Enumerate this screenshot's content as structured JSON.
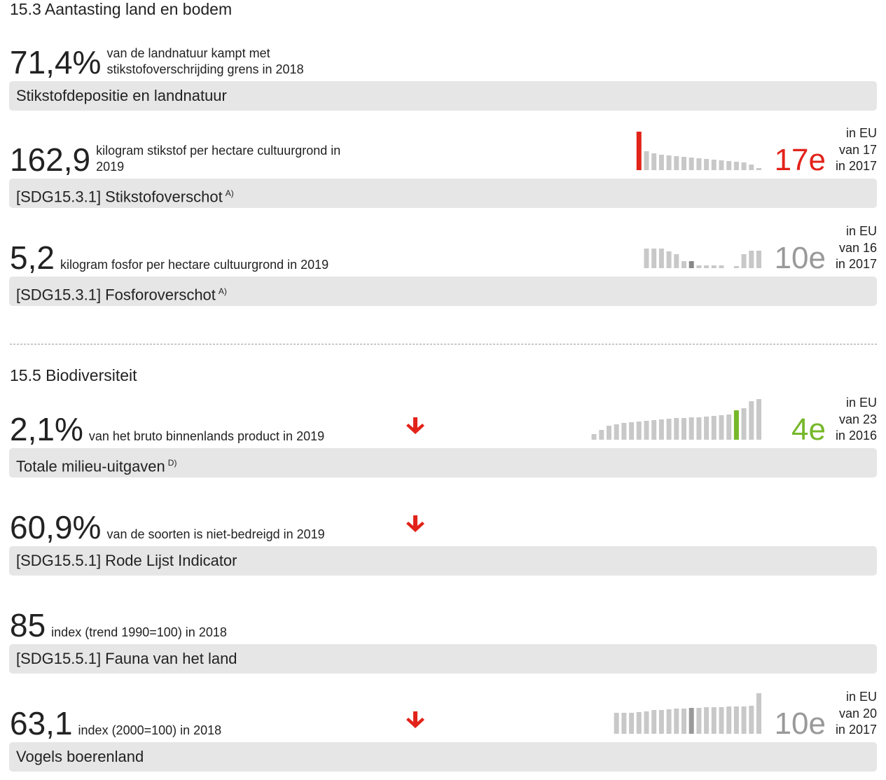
{
  "sections": [
    {
      "title": "15.3 Aantasting land en bodem",
      "indicators": [
        {
          "value": "71,4%",
          "description": [
            "van de landnatuur kampt met",
            "stikstofoverschrijding grens in 2018"
          ],
          "label": "Stikstofdepositie en landnatuur"
        },
        {
          "value": "162,9",
          "description": [
            "kilogram stikstof per hectare cultuurgrond in",
            "2019"
          ],
          "label": "[SDG15.3.1] Stikstofoverschot",
          "note": "A)",
          "rank": {
            "region": "in EU",
            "of": "van 17",
            "year": "in 2017",
            "position": "17e",
            "color": "#e2231a"
          },
          "bars": {
            "values": [
              55,
              27,
              24,
              22,
              21,
              20,
              19,
              18,
              17,
              16,
              15,
              14,
              13,
              12,
              11,
              8,
              3
            ],
            "color": "#c8c8c8",
            "highlight": 0,
            "highlight_color": "#e2231a"
          }
        },
        {
          "value": "5,2",
          "description": [
            "kilogram fosfor per hectare cultuurgrond in 2019"
          ],
          "label": "[SDG15.3.1] Fosforoverschot",
          "note": "A)",
          "rank": {
            "region": "in EU",
            "of": "van 16",
            "year": "in 2017",
            "position": "10e",
            "color": "#999999"
          },
          "bars": {
            "values": [
              28,
              28,
              28,
              24,
              20,
              10,
              10,
              4,
              4,
              4,
              4,
              null,
              3,
              20,
              25,
              25
            ],
            "color": "#c8c8c8",
            "highlight": 6,
            "highlight_color": "#888888"
          }
        }
      ]
    },
    {
      "title": "15.5 Biodiversiteit",
      "indicators": [
        {
          "value": "2,1%",
          "description": [
            "van het bruto binnenlands product in 2019"
          ],
          "label": "Totale milieu-uitgaven",
          "note": "D)",
          "trend": "down",
          "rank": {
            "region": "in EU",
            "of": "van 23",
            "year": "in 2016",
            "position": "4e",
            "color": "#76b82a"
          },
          "bars": {
            "values": [
              8,
              14,
              20,
              22,
              24,
              25,
              26,
              27,
              28,
              29,
              30,
              31,
              31,
              32,
              32,
              33,
              34,
              35,
              36,
              42,
              45,
              55,
              58
            ],
            "color": "#c8c8c8",
            "highlight": 19,
            "highlight_color": "#76b82a"
          }
        },
        {
          "value": "60,9%",
          "description": [
            "van de soorten is niet-bedreigd in 2019"
          ],
          "label": "[SDG15.5.1] Rode Lijst Indicator",
          "trend": "down"
        },
        {
          "value": "85",
          "description": [
            "index (trend 1990=100) in 2018"
          ],
          "label": "[SDG15.5.1] Fauna van het land"
        },
        {
          "value": "63,1",
          "description": [
            "index (2000=100) in 2018"
          ],
          "label": "Vogels boerenland",
          "trend": "down",
          "rank": {
            "region": "in EU",
            "of": "van 20",
            "year": "in 2017",
            "position": "10e",
            "color": "#999999"
          },
          "bars": {
            "values": [
              30,
              30,
              30,
              31,
              32,
              34,
              34,
              35,
              36,
              36,
              37,
              37,
              38,
              38,
              38,
              39,
              39,
              39,
              40,
              58
            ],
            "color": "#c8c8c8",
            "highlight": 10,
            "highlight_color": "#999999"
          }
        }
      ]
    }
  ]
}
